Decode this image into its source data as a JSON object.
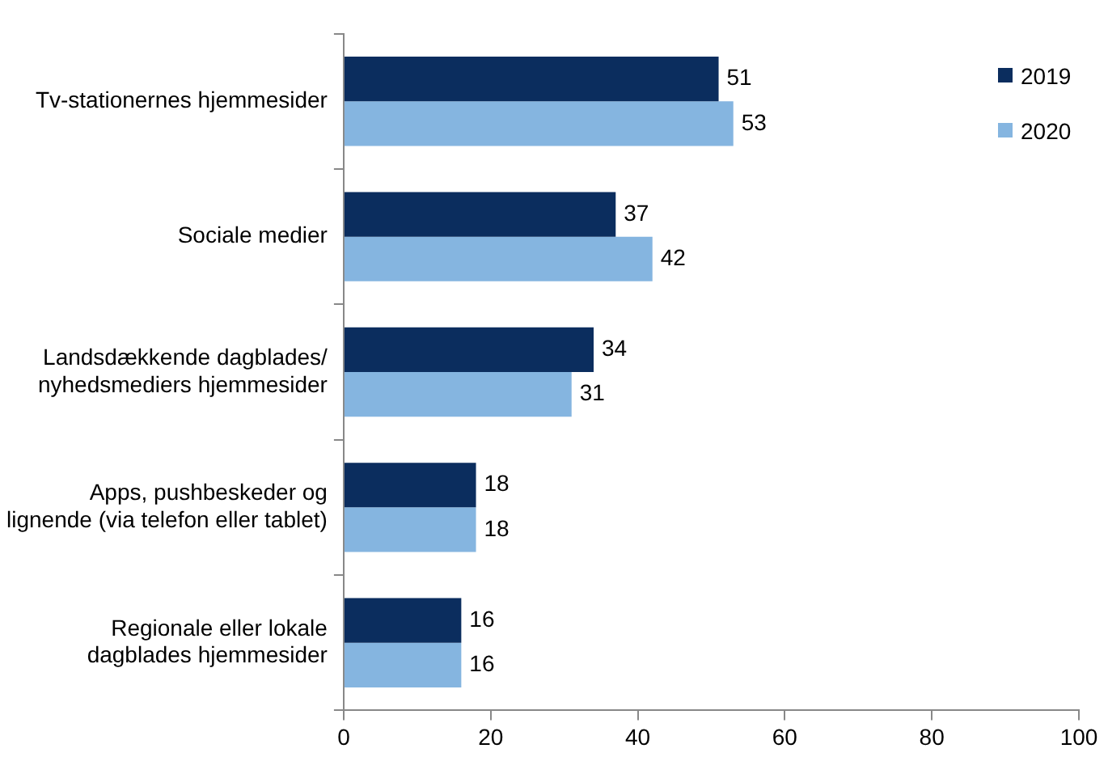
{
  "chart_data": {
    "type": "bar",
    "orientation": "horizontal",
    "categories": [
      "Tv-stationernes hjemmesider",
      "Sociale medier",
      "Landsdækkende dagblades/ nyhedsmediers hjemmesider",
      "Apps, pushbeskeder og lignende (via telefon eller tablet)",
      "Regionale eller lokale dagblades hjemmesider"
    ],
    "series": [
      {
        "name": "2019",
        "color": "#0b2d5e",
        "values": [
          51,
          37,
          34,
          18,
          16
        ]
      },
      {
        "name": "2020",
        "color": "#85b5e0",
        "values": [
          53,
          42,
          31,
          18,
          16
        ]
      }
    ],
    "xlim": [
      0,
      100
    ],
    "xticks": [
      0,
      20,
      40,
      60,
      80,
      100
    ],
    "grid": false,
    "legend": "top right",
    "data_labels": true
  }
}
